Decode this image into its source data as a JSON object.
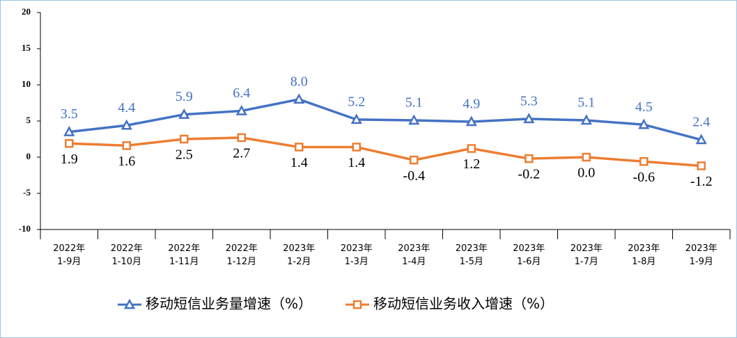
{
  "chart_data": {
    "type": "line",
    "categories": [
      "2022年\n1-9月",
      "2022年\n1-10月",
      "2022年\n1-11月",
      "2022年\n1-12月",
      "2023年\n1-2月",
      "2023年\n1-3月",
      "2023年\n1-4月",
      "2023年\n1-5月",
      "2023年\n1-6月",
      "2023年\n1-7月",
      "2023年\n1-8月",
      "2023年\n1-9月"
    ],
    "series": [
      {
        "name": "移动短信业务量增速（%）",
        "color": "#4472c4",
        "marker": "triangle",
        "label_position": "above",
        "values": [
          3.5,
          4.4,
          5.9,
          6.4,
          8.0,
          5.2,
          5.1,
          4.9,
          5.3,
          5.1,
          4.5,
          2.4
        ],
        "value_labels": [
          "3.5",
          "4.4",
          "5.9",
          "6.4",
          "8.0",
          "5.2",
          "5.1",
          "4.9",
          "5.3",
          "5.1",
          "4.5",
          "2.4"
        ]
      },
      {
        "name": "移动短信业务收入增速（%）",
        "color": "#ed7d31",
        "marker": "square",
        "label_position": "below",
        "values": [
          1.9,
          1.6,
          2.5,
          2.7,
          1.4,
          1.4,
          -0.4,
          1.2,
          -0.2,
          0.0,
          -0.6,
          -1.2
        ],
        "value_labels": [
          "1.9",
          "1.6",
          "2.5",
          "2.7",
          "1.4",
          "1.4",
          "-0.4",
          "1.2",
          "-0.2",
          "0.0",
          "-0.6",
          "-1.2"
        ]
      }
    ],
    "ylim": [
      -10,
      20
    ],
    "yticks": [
      -10,
      -5,
      0,
      5,
      10,
      15,
      20
    ],
    "legend": "bottom"
  }
}
